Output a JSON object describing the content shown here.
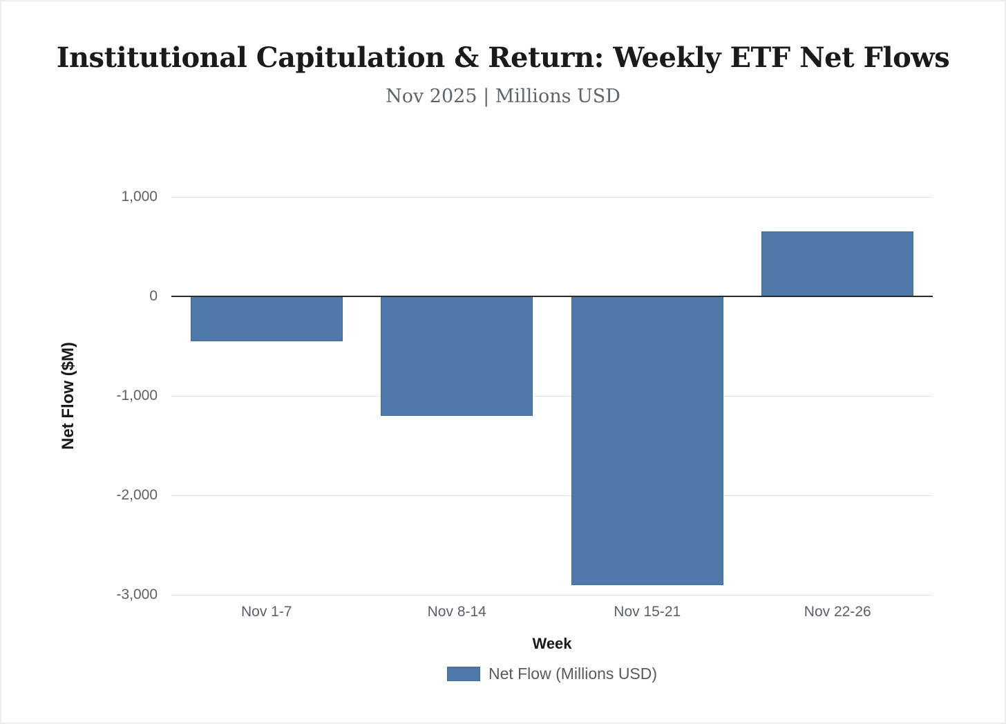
{
  "header": {
    "title": "Institutional Capitulation & Return: Weekly ETF Net Flows",
    "subtitle": "Nov 2025 | Millions USD"
  },
  "chart_data": {
    "type": "bar",
    "title": "Institutional Capitulation & Return: Weekly ETF Net Flows",
    "subtitle": "Nov 2025 | Millions USD",
    "categories": [
      "Nov 1-7",
      "Nov 8-14",
      "Nov 15-21",
      "Nov 22-26"
    ],
    "series": [
      {
        "name": "Net Flow (Millions USD)",
        "values": [
          -450,
          -1200,
          -2900,
          650
        ]
      }
    ],
    "xlabel": "Week",
    "ylabel": "Net Flow ($M)",
    "ylim": [
      -3000,
      1000
    ],
    "yticks": [
      {
        "value": 1000,
        "label": "1,000"
      },
      {
        "value": 0,
        "label": "0"
      },
      {
        "value": -1000,
        "label": "-1,000"
      },
      {
        "value": -2000,
        "label": "-2,000"
      },
      {
        "value": -3000,
        "label": "-3,000"
      }
    ],
    "grid": true,
    "legend_position": "bottom",
    "legend": [
      {
        "label": "Net Flow (Millions USD)",
        "color": "#4e79a8"
      }
    ],
    "colors": {
      "bar_fill": "#4e79a8",
      "bar_border": "#345c8a",
      "grid_line": "#e6e6e6",
      "zero_line": "#2b2b2b",
      "tick_text": "#5a6168",
      "axis_title_text": "#17191c",
      "title_text": "#1a1a1a",
      "subtitle_text": "#5f646b"
    }
  }
}
